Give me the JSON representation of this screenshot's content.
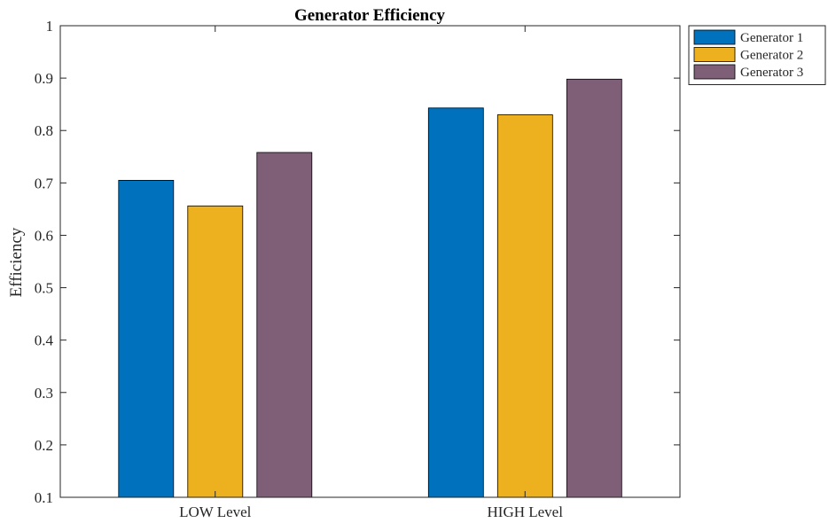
{
  "chart_data": {
    "type": "bar",
    "title": "Generator Efficiency",
    "xlabel": "",
    "ylabel": "Efficiency",
    "categories": [
      "LOW Level",
      "HIGH Level"
    ],
    "series": [
      {
        "name": "Generator 1",
        "values": [
          0.705,
          0.843
        ],
        "color": "#0072BD"
      },
      {
        "name": "Generator 2",
        "values": [
          0.656,
          0.83
        ],
        "color": "#EDB120"
      },
      {
        "name": "Generator 3",
        "values": [
          0.758,
          0.898
        ],
        "color": "#7E5F77"
      }
    ],
    "ylim": [
      0.1,
      1
    ],
    "yticks": [
      0.1,
      0.2,
      0.3,
      0.4,
      0.5,
      0.6,
      0.7,
      0.8,
      0.9,
      1
    ],
    "ytick_labels": [
      "0.1",
      "0.2",
      "0.3",
      "0.4",
      "0.5",
      "0.6",
      "0.7",
      "0.8",
      "0.9",
      "1"
    ],
    "grid": false,
    "legend_position": "outside-top-right"
  }
}
